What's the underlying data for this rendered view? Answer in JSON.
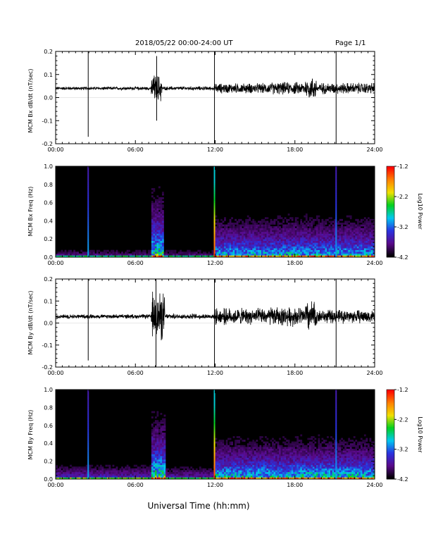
{
  "header": {
    "date_range": "2018/05/22  00:00-24:00 UT",
    "page": "Page 1/1"
  },
  "xlabel": "Universal Time (hh:mm)",
  "colorbar": {
    "label": "Log10 Power",
    "ticks": [
      "-1.2",
      "-2.2",
      "-3.2",
      "-4.2"
    ],
    "range": [
      -4.2,
      -1.2
    ],
    "colors": [
      "#000000",
      "#5a0a8a",
      "#2a32e0",
      "#00c8f0",
      "#00d020",
      "#f0e000",
      "#ff8000",
      "#ff0000"
    ]
  },
  "chart_data": [
    {
      "type": "line",
      "ylabel": "MCM Bx dB/dt (nT/sec)",
      "xlim": [
        0,
        24
      ],
      "ylim": [
        -0.2,
        0.2
      ],
      "x_ticks": [
        "00:00",
        "06:00",
        "12:00",
        "18:00",
        "24:00"
      ],
      "y_ticks": [
        "0.2",
        "0.1",
        "0.0",
        "-0.1",
        "-0.2"
      ],
      "baseline": 0.04,
      "noise_envelope": [
        {
          "hours": [
            0,
            7.2
          ],
          "amp": 0.006
        },
        {
          "hours": [
            7.2,
            8.0
          ],
          "amp": 0.05
        },
        {
          "hours": [
            8.0,
            12.0
          ],
          "amp": 0.007
        },
        {
          "hours": [
            12.0,
            16.0
          ],
          "amp": 0.018
        },
        {
          "hours": [
            16.0,
            19.0
          ],
          "amp": 0.022
        },
        {
          "hours": [
            18.8,
            19.6
          ],
          "amp": 0.04
        },
        {
          "hours": [
            19.6,
            24.0
          ],
          "amp": 0.02
        }
      ],
      "spikes": [
        {
          "x": 2.45,
          "min": -0.17,
          "max": 0.2
        },
        {
          "x": 7.6,
          "min": -0.1,
          "max": 0.18
        },
        {
          "x": 11.95,
          "min": -0.2,
          "max": 0.2
        },
        {
          "x": 21.1,
          "min": -0.2,
          "max": 0.2
        }
      ]
    },
    {
      "type": "heatmap",
      "ylabel": "MCM Bx Freq (Hz)",
      "xlim": [
        0,
        24
      ],
      "ylim": [
        0.0,
        1.0
      ],
      "x_ticks": [
        "00:00",
        "06:00",
        "12:00",
        "18:00",
        "24:00"
      ],
      "y_ticks": [
        "1.0",
        "0.8",
        "0.6",
        "0.4",
        "0.2",
        "0.0"
      ],
      "colorbar_label": "Log10 Power",
      "activity_bands": [
        {
          "hours": [
            0,
            7.2
          ],
          "level": 0.22,
          "max_freq": 0.12
        },
        {
          "hours": [
            7.2,
            8.2
          ],
          "level": 0.6,
          "max_freq": 0.7
        },
        {
          "hours": [
            8.2,
            12.0
          ],
          "level": 0.2,
          "max_freq": 0.12
        },
        {
          "hours": [
            12.0,
            24.0
          ],
          "level": 0.5,
          "max_freq": 0.45
        }
      ],
      "vertical_lines": [
        2.45,
        11.95,
        21.1
      ]
    },
    {
      "type": "line",
      "ylabel": "MCM By dB/dt (nT/sec)",
      "xlim": [
        0,
        24
      ],
      "ylim": [
        -0.2,
        0.2
      ],
      "x_ticks": [
        "00:00",
        "06:00",
        "12:00",
        "18:00",
        "24:00"
      ],
      "y_ticks": [
        "0.2",
        "0.1",
        "0.0",
        "-0.1",
        "-0.2"
      ],
      "baseline": 0.03,
      "noise_envelope": [
        {
          "hours": [
            0,
            7.2
          ],
          "amp": 0.008
        },
        {
          "hours": [
            7.2,
            8.2
          ],
          "amp": 0.09
        },
        {
          "hours": [
            8.2,
            12.0
          ],
          "amp": 0.01
        },
        {
          "hours": [
            12.0,
            16.0
          ],
          "amp": 0.03
        },
        {
          "hours": [
            16.0,
            19.0
          ],
          "amp": 0.035
        },
        {
          "hours": [
            18.8,
            19.6
          ],
          "amp": 0.06
        },
        {
          "hours": [
            19.6,
            24.0
          ],
          "amp": 0.025
        }
      ],
      "spikes": [
        {
          "x": 2.45,
          "min": -0.17,
          "max": 0.2
        },
        {
          "x": 7.55,
          "min": -0.2,
          "max": 0.2
        },
        {
          "x": 11.95,
          "min": -0.2,
          "max": 0.2
        },
        {
          "x": 21.1,
          "min": -0.2,
          "max": 0.2
        }
      ]
    },
    {
      "type": "heatmap",
      "ylabel": "MCM By Freq (Hz)",
      "xlim": [
        0,
        24
      ],
      "ylim": [
        0.0,
        1.0
      ],
      "x_ticks": [
        "00:00",
        "06:00",
        "12:00",
        "18:00",
        "24:00"
      ],
      "y_ticks": [
        "1.0",
        "0.8",
        "0.6",
        "0.4",
        "0.2",
        "0.0"
      ],
      "colorbar_label": "Log10 Power",
      "activity_bands": [
        {
          "hours": [
            0,
            7.2
          ],
          "level": 0.3,
          "max_freq": 0.2
        },
        {
          "hours": [
            7.2,
            8.3
          ],
          "level": 0.6,
          "max_freq": 0.7
        },
        {
          "hours": [
            8.3,
            12.0
          ],
          "level": 0.25,
          "max_freq": 0.2
        },
        {
          "hours": [
            12.0,
            24.0
          ],
          "level": 0.55,
          "max_freq": 0.45
        }
      ],
      "vertical_lines": [
        2.45,
        11.95,
        21.1
      ]
    }
  ]
}
